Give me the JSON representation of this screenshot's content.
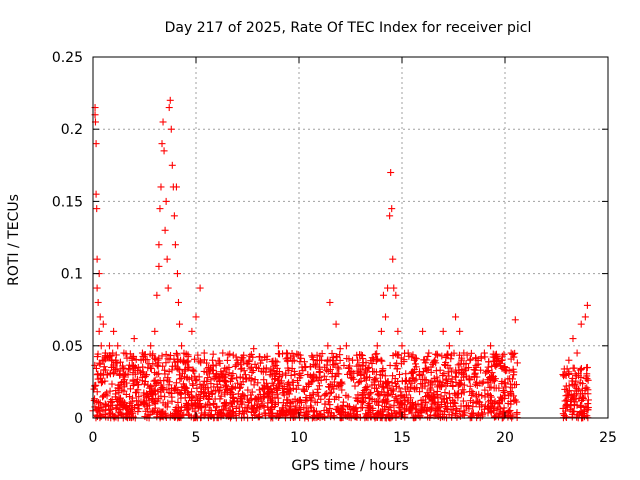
{
  "chart_data": {
    "type": "scatter",
    "title": "Day 217 of 2025, Rate Of TEC Index for receiver picl",
    "xlabel": "GPS time / hours",
    "ylabel": "ROTI / TECUs",
    "xlim": [
      0,
      25
    ],
    "ylim": [
      0,
      0.25
    ],
    "xticks": [
      0,
      5,
      10,
      15,
      20,
      25
    ],
    "xtick_labels": [
      "0",
      "5",
      "10",
      "15",
      "20",
      "25"
    ],
    "yticks": [
      0,
      0.05,
      0.1,
      0.15,
      0.2,
      0.25
    ],
    "ytick_labels": [
      "0",
      "0.05",
      "0.1",
      "0.15",
      "0.2",
      "0.25"
    ],
    "grid": true,
    "marker": "+",
    "color": "#ff0000",
    "series": [
      {
        "points": [
          [
            0.0,
            0.005
          ],
          [
            0.05,
            0.02
          ],
          [
            0.1,
            0.215
          ],
          [
            0.1,
            0.21
          ],
          [
            0.12,
            0.205
          ],
          [
            0.15,
            0.19
          ],
          [
            0.15,
            0.155
          ],
          [
            0.18,
            0.145
          ],
          [
            0.2,
            0.11
          ],
          [
            0.2,
            0.09
          ],
          [
            0.25,
            0.08
          ],
          [
            0.3,
            0.1
          ],
          [
            0.3,
            0.06
          ],
          [
            0.35,
            0.07
          ],
          [
            0.4,
            0.05
          ],
          [
            0.45,
            0.04
          ],
          [
            0.5,
            0.03
          ],
          [
            0.5,
            0.065
          ],
          [
            0.6,
            0.045
          ],
          [
            0.7,
            0.03
          ],
          [
            0.8,
            0.05
          ],
          [
            0.9,
            0.035
          ],
          [
            1.0,
            0.06
          ],
          [
            1.1,
            0.04
          ],
          [
            1.2,
            0.05
          ],
          [
            1.3,
            0.03
          ],
          [
            1.5,
            0.045
          ],
          [
            1.7,
            0.03
          ],
          [
            1.9,
            0.04
          ],
          [
            2.0,
            0.055
          ],
          [
            2.2,
            0.035
          ],
          [
            2.4,
            0.045
          ],
          [
            2.6,
            0.03
          ],
          [
            2.8,
            0.05
          ],
          [
            3.0,
            0.06
          ],
          [
            3.1,
            0.085
          ],
          [
            3.2,
            0.12
          ],
          [
            3.2,
            0.105
          ],
          [
            3.25,
            0.145
          ],
          [
            3.3,
            0.16
          ],
          [
            3.35,
            0.19
          ],
          [
            3.4,
            0.205
          ],
          [
            3.45,
            0.185
          ],
          [
            3.5,
            0.13
          ],
          [
            3.55,
            0.15
          ],
          [
            3.6,
            0.11
          ],
          [
            3.65,
            0.09
          ],
          [
            3.7,
            0.215
          ],
          [
            3.75,
            0.22
          ],
          [
            3.8,
            0.2
          ],
          [
            3.85,
            0.175
          ],
          [
            3.9,
            0.16
          ],
          [
            3.95,
            0.14
          ],
          [
            4.0,
            0.12
          ],
          [
            4.05,
            0.16
          ],
          [
            4.1,
            0.1
          ],
          [
            4.15,
            0.08
          ],
          [
            4.2,
            0.065
          ],
          [
            4.3,
            0.05
          ],
          [
            4.4,
            0.04
          ],
          [
            4.6,
            0.035
          ],
          [
            4.8,
            0.06
          ],
          [
            5.0,
            0.07
          ],
          [
            5.2,
            0.09
          ],
          [
            5.4,
            0.045
          ],
          [
            5.6,
            0.035
          ],
          [
            5.8,
            0.04
          ],
          [
            6.0,
            0.03
          ],
          [
            6.3,
            0.045
          ],
          [
            6.6,
            0.035
          ],
          [
            7.0,
            0.04
          ],
          [
            7.4,
            0.03
          ],
          [
            7.8,
            0.048
          ],
          [
            8.2,
            0.04
          ],
          [
            8.6,
            0.03
          ],
          [
            9.0,
            0.05
          ],
          [
            9.4,
            0.045
          ],
          [
            9.8,
            0.03
          ],
          [
            10.2,
            0.02
          ],
          [
            10.6,
            0.025
          ],
          [
            11.0,
            0.04
          ],
          [
            11.4,
            0.05
          ],
          [
            11.5,
            0.08
          ],
          [
            11.8,
            0.065
          ],
          [
            12.0,
            0.048
          ],
          [
            12.3,
            0.05
          ],
          [
            12.6,
            0.04
          ],
          [
            13.0,
            0.03
          ],
          [
            13.4,
            0.035
          ],
          [
            13.8,
            0.05
          ],
          [
            14.0,
            0.06
          ],
          [
            14.1,
            0.085
          ],
          [
            14.2,
            0.07
          ],
          [
            14.3,
            0.09
          ],
          [
            14.4,
            0.14
          ],
          [
            14.45,
            0.17
          ],
          [
            14.5,
            0.145
          ],
          [
            14.55,
            0.11
          ],
          [
            14.6,
            0.09
          ],
          [
            14.7,
            0.085
          ],
          [
            14.8,
            0.06
          ],
          [
            15.0,
            0.05
          ],
          [
            15.3,
            0.045
          ],
          [
            15.6,
            0.04
          ],
          [
            16.0,
            0.06
          ],
          [
            16.3,
            0.045
          ],
          [
            16.6,
            0.04
          ],
          [
            17.0,
            0.06
          ],
          [
            17.3,
            0.05
          ],
          [
            17.6,
            0.07
          ],
          [
            17.8,
            0.06
          ],
          [
            18.0,
            0.045
          ],
          [
            18.3,
            0.04
          ],
          [
            18.6,
            0.035
          ],
          [
            19.0,
            0.045
          ],
          [
            19.3,
            0.05
          ],
          [
            19.6,
            0.04
          ],
          [
            20.0,
            0.035
          ],
          [
            20.3,
            0.045
          ],
          [
            20.5,
            0.068
          ],
          [
            22.9,
            0.03
          ],
          [
            23.1,
            0.04
          ],
          [
            23.3,
            0.055
          ],
          [
            23.5,
            0.045
          ],
          [
            23.7,
            0.065
          ],
          [
            23.9,
            0.07
          ],
          [
            24.0,
            0.078
          ],
          [
            24.0,
            0.035
          ]
        ]
      }
    ],
    "dense_band": {
      "note": "",
      "segments": [
        {
          "x": [
            0.0,
            20.6
          ],
          "y": [
            0.0,
            0.045
          ]
        },
        {
          "x": [
            22.8,
            24.05
          ],
          "y": [
            0.0,
            0.035
          ]
        }
      ]
    }
  }
}
